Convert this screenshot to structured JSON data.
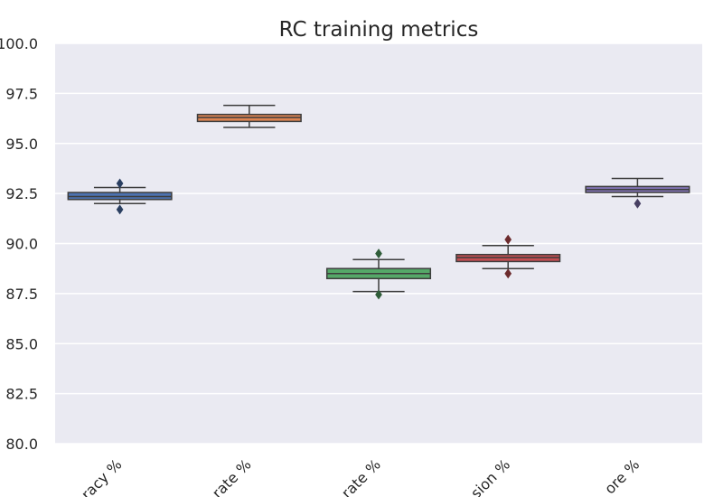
{
  "chart_data": {
    "type": "box",
    "title": "RC training metrics",
    "xlabel": "",
    "ylabel": "",
    "ylim": [
      80.0,
      100.0
    ],
    "yticks": [
      "80.0",
      "82.5",
      "85.0",
      "87.5",
      "90.0",
      "92.5",
      "95.0",
      "97.5",
      "100.0"
    ],
    "grid": true,
    "categories": [
      "racy %",
      "rate %",
      "rate %",
      "sion %",
      "ore %"
    ],
    "series": [
      {
        "color": "#4c72b0",
        "whisker_low": 92.0,
        "q1": 92.2,
        "median": 92.35,
        "q3": 92.55,
        "whisker_high": 92.8,
        "outliers": [
          93.0,
          91.7
        ]
      },
      {
        "color": "#dd8452",
        "whisker_low": 95.8,
        "q1": 96.1,
        "median": 96.3,
        "q3": 96.45,
        "whisker_high": 96.9,
        "outliers": []
      },
      {
        "color": "#55a868",
        "whisker_low": 87.6,
        "q1": 88.25,
        "median": 88.5,
        "q3": 88.75,
        "whisker_high": 89.2,
        "outliers": [
          89.5,
          87.45
        ]
      },
      {
        "color": "#c44e52",
        "whisker_low": 88.75,
        "q1": 89.1,
        "median": 89.3,
        "q3": 89.45,
        "whisker_high": 89.9,
        "outliers": [
          90.2,
          88.5
        ]
      },
      {
        "color": "#8172b3",
        "whisker_low": 92.35,
        "q1": 92.55,
        "median": 92.7,
        "q3": 92.85,
        "whisker_high": 93.25,
        "outliers": [
          92.0
        ]
      }
    ]
  }
}
